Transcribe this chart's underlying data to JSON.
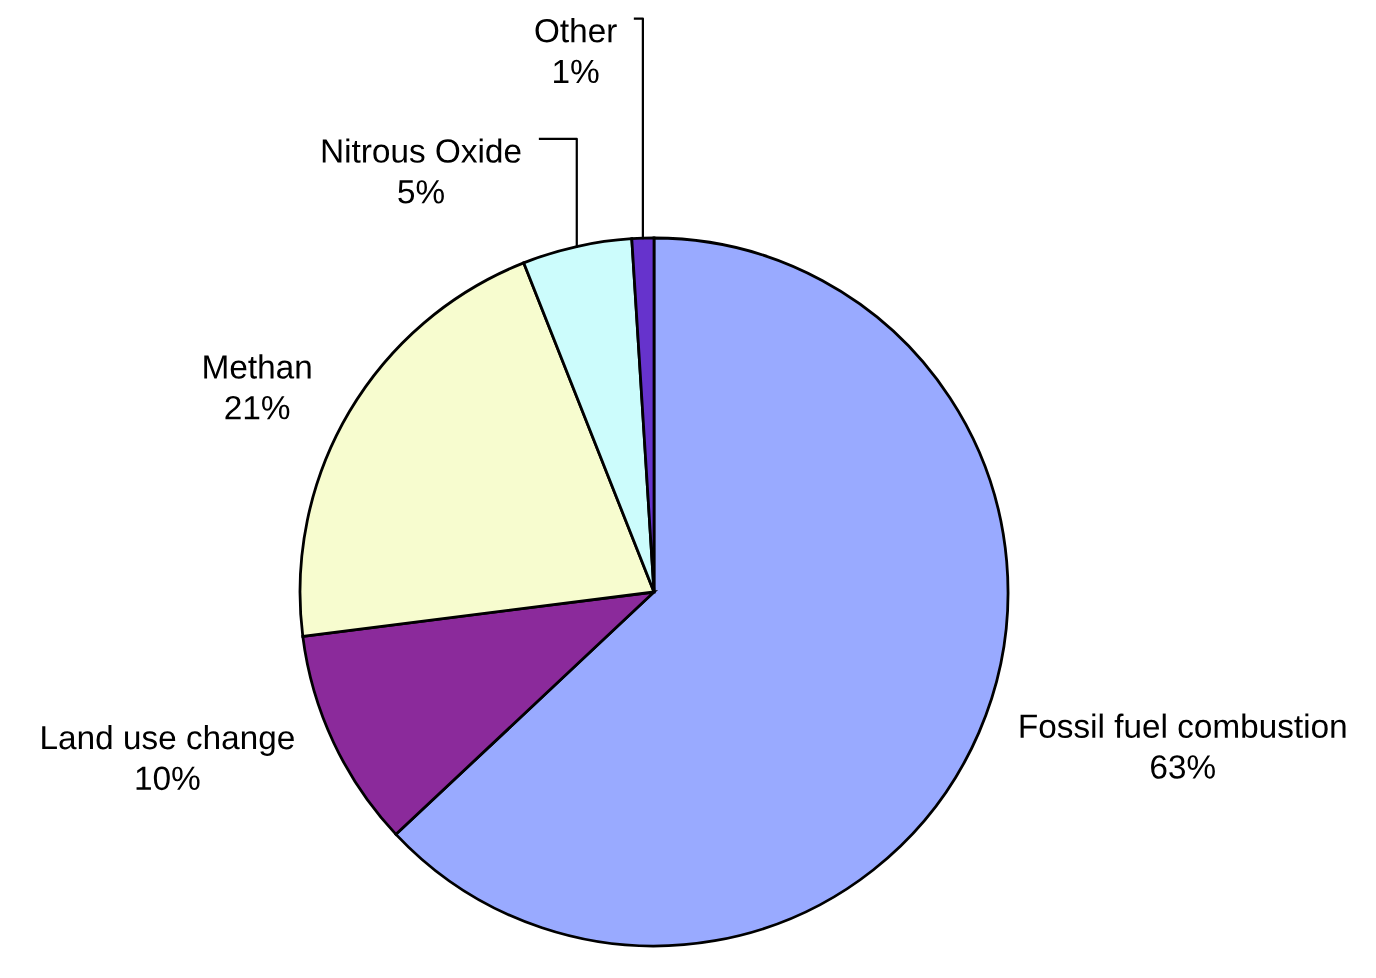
{
  "chart_data": {
    "type": "pie",
    "categories": [
      "Fossil fuel combustion",
      "Land use change",
      "Methan",
      "Nitrous Oxide",
      "Other"
    ],
    "values": [
      63,
      10,
      21,
      5,
      1
    ],
    "colors": [
      "#99aaff",
      "#8b2a9b",
      "#f7fccf",
      "#ccfcfc",
      "#6633cc"
    ],
    "value_labels": [
      "63%",
      "10%",
      "21%",
      "5%",
      "1%"
    ],
    "legend": false
  }
}
